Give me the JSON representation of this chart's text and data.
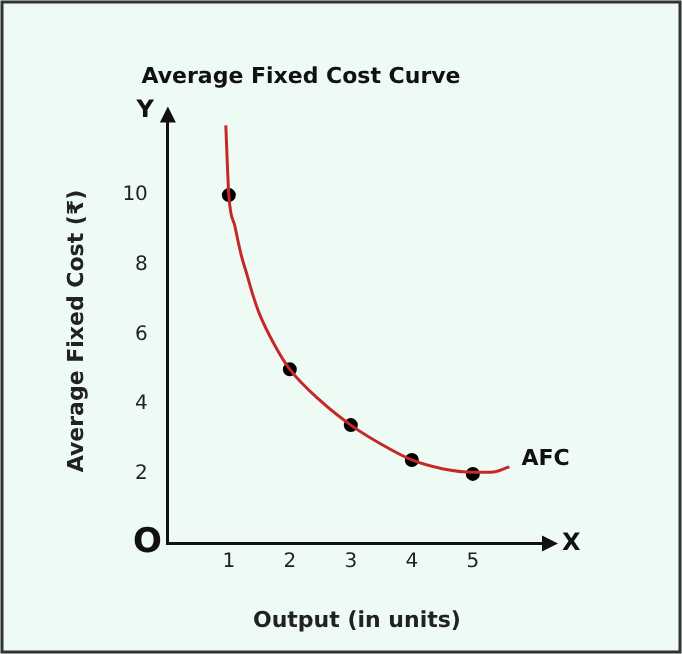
{
  "chart_data": {
    "type": "line",
    "title": "Average Fixed Cost Curve",
    "xlabel": "Output (in units)",
    "ylabel": "Average Fixed Cost (₹)",
    "xlim": [
      0,
      6.2
    ],
    "xticks": [
      1,
      2,
      3,
      4,
      5
    ],
    "ylim": [
      0,
      12.2
    ],
    "yticks": [
      2,
      4,
      6,
      8,
      10
    ],
    "grid": false,
    "legend": false,
    "series": [
      {
        "name": "AFC",
        "type": "line",
        "color": "#c62828",
        "marker": "none",
        "x": [
          0.95,
          1,
          1.1,
          1.2,
          1.3,
          1.4,
          1.5,
          1.75,
          2,
          2.5,
          3,
          3.5,
          4,
          4.5,
          5,
          5.3,
          5.6
        ],
        "values": [
          12,
          10,
          9.1,
          8.3,
          7.7,
          7.1,
          6.6,
          5.7,
          5,
          4.1,
          3.4,
          2.85,
          2.4,
          2.15,
          2.05,
          2.05,
          2.2
        ]
      },
      {
        "type": "scatter",
        "color": "#000000",
        "marker": "circle",
        "x": [
          1,
          2,
          3,
          4,
          5
        ],
        "values": [
          10,
          5,
          3.4,
          2.4,
          2
        ]
      }
    ],
    "annotations": [
      "Y",
      "X",
      "O"
    ]
  }
}
